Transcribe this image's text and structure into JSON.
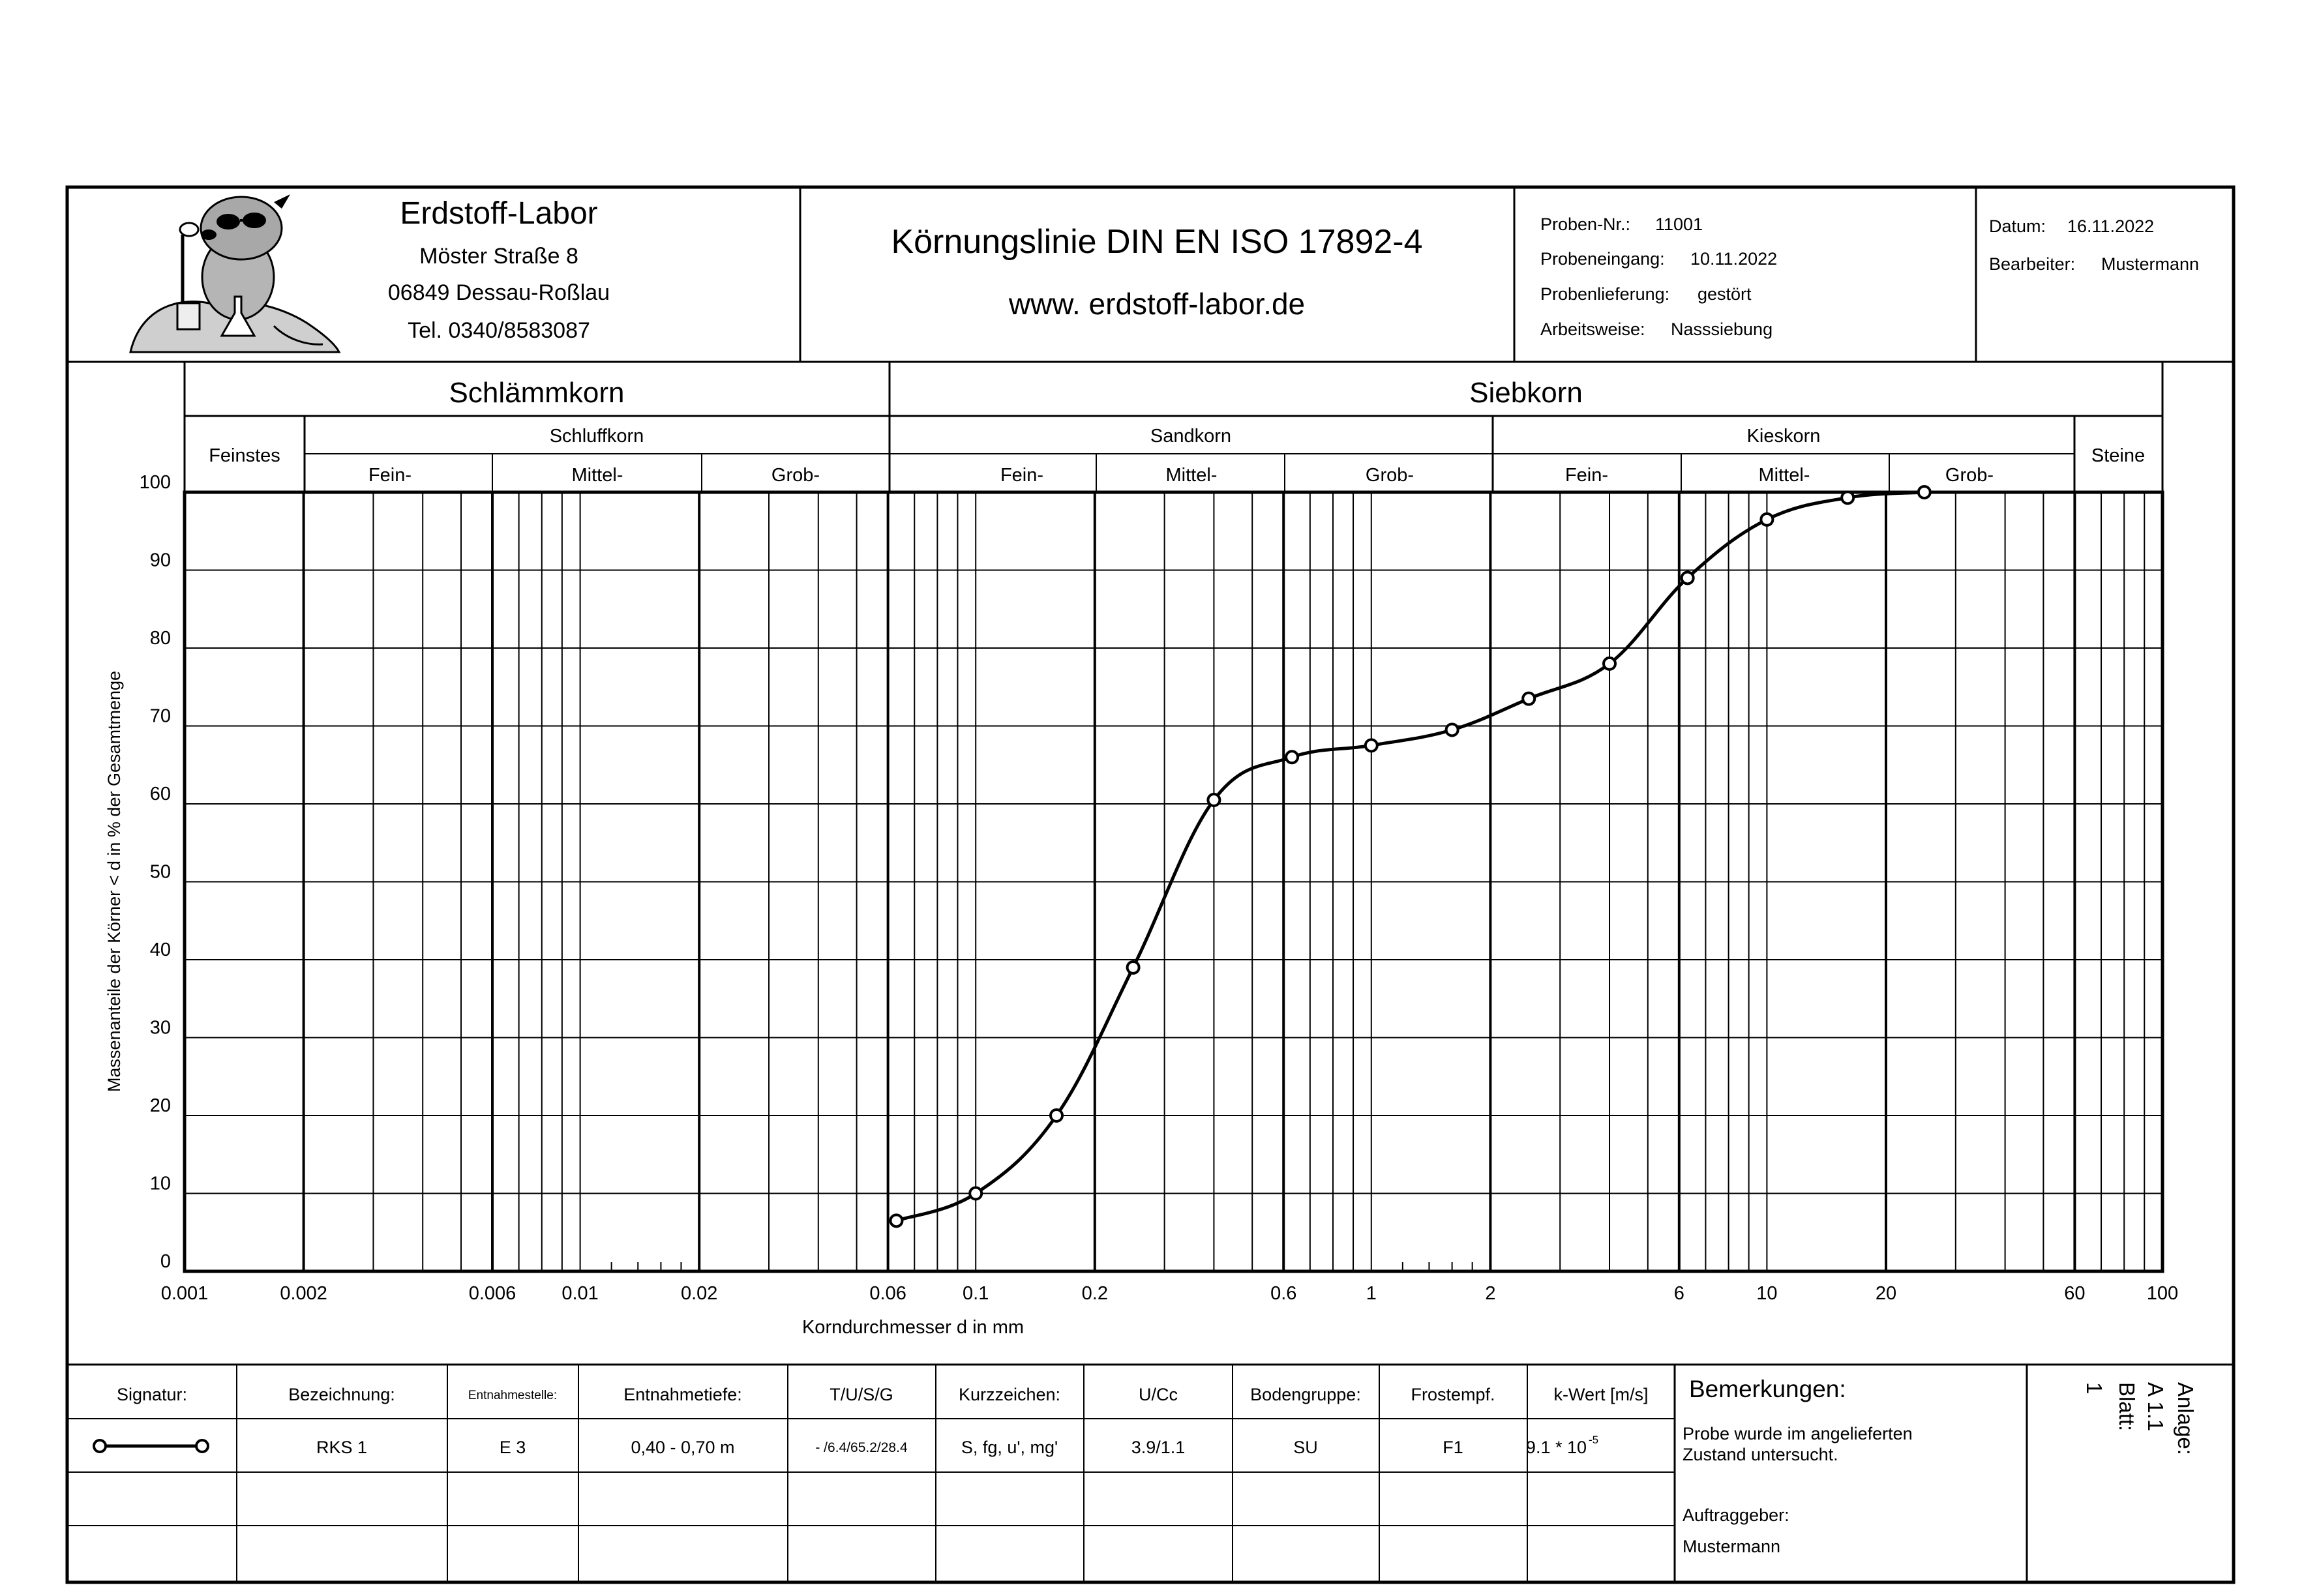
{
  "header": {
    "lab_name": "Erdstoff-Labor",
    "street": "Möster Straße 8",
    "city": "06849 Dessau-Roßlau",
    "phone": "Tel. 0340/8583087",
    "title": "Körnungslinie DIN EN ISO 17892-4",
    "website": "www. erdstoff-labor.de",
    "sample_no_label": "Proben-Nr.:",
    "sample_no": "11001",
    "received_label": "Probeneingang:",
    "received": "10.11.2022",
    "delivery_label": "Probenlieferung:",
    "delivery": "gestört",
    "method_label": "Arbeitsweise:",
    "method": "Nasssiebung",
    "date_label": "Datum:",
    "date": "16.11.2022",
    "editor_label": "Bearbeiter:",
    "editor": "Mustermann"
  },
  "classes": {
    "silt_group": "Schlämmkorn",
    "sieve_group": "Siebkorn",
    "finest": "Feinstes",
    "silt": "Schluffkorn",
    "sand": "Sandkorn",
    "gravel": "Kieskorn",
    "stones": "Steine",
    "fine": "Fein-",
    "medium": "Mittel-",
    "coarse": "Grob-"
  },
  "chart_data": {
    "type": "line",
    "title": "",
    "xlabel": "Korndurchmesser d in mm",
    "ylabel": "Massenanteile der Körner < d in % der Gesamtmenge",
    "x_scale": "log",
    "xlim": [
      0.001,
      100
    ],
    "ylim": [
      0,
      100
    ],
    "y_ticks": [
      0,
      10,
      20,
      30,
      40,
      50,
      60,
      70,
      80,
      90,
      100
    ],
    "x_tick_labels": [
      {
        "value": 0.001,
        "label": "0.001"
      },
      {
        "value": 0.002,
        "label": "0.002"
      },
      {
        "value": 0.006,
        "label": "0.006"
      },
      {
        "value": 0.01,
        "label": "0.01"
      },
      {
        "value": 0.02,
        "label": "0.02"
      },
      {
        "value": 0.06,
        "label": "0.06"
      },
      {
        "value": 0.1,
        "label": "0.1"
      },
      {
        "value": 0.2,
        "label": "0.2"
      },
      {
        "value": 0.6,
        "label": "0.6"
      },
      {
        "value": 1,
        "label": "1"
      },
      {
        "value": 2,
        "label": "2"
      },
      {
        "value": 6,
        "label": "6"
      },
      {
        "value": 10,
        "label": "10"
      },
      {
        "value": 20,
        "label": "20"
      },
      {
        "value": 60,
        "label": "60"
      },
      {
        "value": 100,
        "label": "100"
      }
    ],
    "grid": true,
    "series": [
      {
        "marker": "open-circle",
        "x": [
          0.063,
          0.1,
          0.16,
          0.25,
          0.4,
          0.63,
          1.0,
          1.6,
          2.5,
          4.0,
          6.3,
          10.0,
          16.0,
          25.0
        ],
        "y": [
          6.5,
          10.0,
          20.0,
          39.0,
          60.5,
          66.0,
          67.5,
          69.5,
          73.5,
          78.0,
          89.0,
          96.5,
          99.3,
          100.0
        ]
      }
    ]
  },
  "table": {
    "headers": {
      "signature": "Signatur:",
      "designation": "Bezeichnung:",
      "location": "Entnahmestelle:",
      "depth": "Entnahmetiefe:",
      "tusg": "T/U/S/G",
      "symbol": "Kurzzeichen:",
      "ucc": "U/Cc",
      "soil_group": "Bodengruppe:",
      "frost": "Frostempf.",
      "k_value": "k-Wert [m/s]",
      "remarks": "Bemerkungen:"
    },
    "row": {
      "designation": "RKS 1",
      "location": "E 3",
      "depth": "0,40 - 0,70 m",
      "tusg": "- /6.4/65.2/28.4",
      "symbol": "S, fg, u', mg'",
      "ucc": "3.9/1.1",
      "soil_group": "SU",
      "frost": "F1",
      "k_value_mantissa": "9.1 * 10",
      "k_value_exponent": "-5"
    },
    "remarks_line1": "Probe wurde im angelieferten",
    "remarks_line2": "Zustand untersucht.",
    "client_label": "Auftraggeber:",
    "client": "Mustermann",
    "annex_label": "Anlage:",
    "annex": "A 1.1",
    "sheet_label": "Blatt:",
    "sheet": "1"
  }
}
